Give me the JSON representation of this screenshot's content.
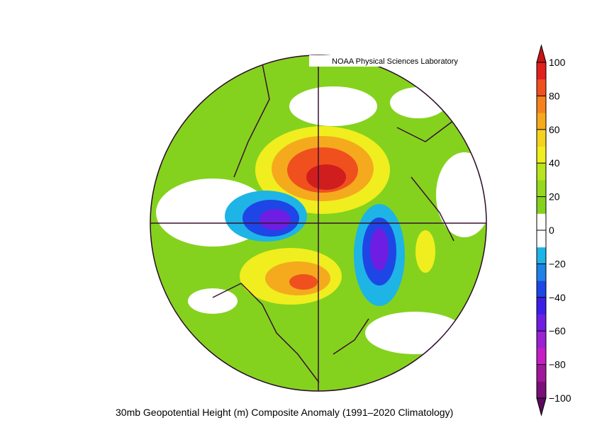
{
  "header": {
    "credit": "NOAA Physical Sciences Laboratory"
  },
  "caption": "30mb Geopotential Height (m) Composite Anomaly (1991–2020 Climatology)",
  "colorbar": {
    "lim": [
      -100,
      100
    ],
    "ticks": [
      100,
      80,
      60,
      40,
      20,
      0,
      {
        "value": -20,
        "label": "−20"
      },
      {
        "value": -40,
        "label": "−40"
      },
      {
        "value": -60,
        "label": "−60"
      },
      {
        "value": -80,
        "label": "−80"
      },
      {
        "value": -100,
        "label": "−100"
      }
    ],
    "colors": [
      "#7a0f78",
      "#a0169a",
      "#c41ec4",
      "#9a22d2",
      "#6e1ee2",
      "#3c1ee8",
      "#1e46e6",
      "#1e82e6",
      "#1eb4e6",
      "#ffffff",
      "#ffffff",
      "#84d21e",
      "#96d81e",
      "#b8e41e",
      "#f0ee1e",
      "#f5d21e",
      "#f5aa1e",
      "#f5821e",
      "#f0501e",
      "#e0201e"
    ],
    "under_color": "#5a0a5a",
    "over_color": "#c81414"
  }
}
